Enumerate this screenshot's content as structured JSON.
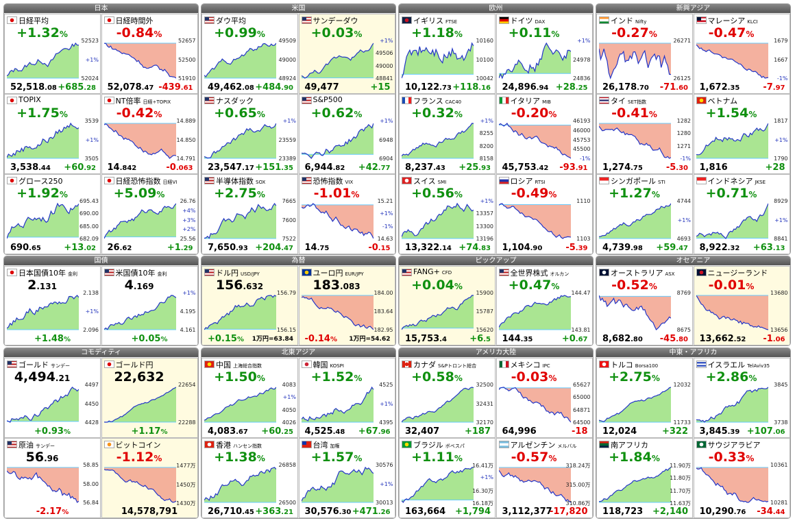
{
  "groups": [
    {
      "title": "日本",
      "tiles": [
        {
          "name": "日経平均",
          "big": "+1.32%",
          "labels": [
            "52523",
            "+1%",
            "52024"
          ],
          "bottom": [
            "52,518.08",
            "+685.28"
          ]
        },
        {
          "name": "日経時間外",
          "big": "-0.84%",
          "labels": [
            "52657",
            "52500",
            "51910"
          ],
          "bottom": [
            "52,078.47",
            "-439.61"
          ]
        },
        {
          "name": "TOPIX",
          "big": "+1.75%",
          "labels": [
            "3539",
            "+1%",
            "3505"
          ],
          "bottom": [
            "3,538.44",
            "+60.92"
          ]
        },
        {
          "name": "NT倍率",
          "sub": "日経÷TOPIX",
          "big": "-0.42%",
          "labels": [
            "14.889",
            "14.850",
            "14.791"
          ],
          "bottom": [
            "14.842",
            "-0.063"
          ]
        },
        {
          "name": "グロース250",
          "big": "+1.92%",
          "labels": [
            "695.43",
            "690.00",
            "685.00",
            "682.09"
          ],
          "bottom": [
            "690.65",
            "+13.02"
          ]
        },
        {
          "name": "日経恐怖指数",
          "sub": "日経VI",
          "big": "+5.09%",
          "labels": [
            "26.76",
            "+4%",
            "+3%",
            "+2%",
            "25.56"
          ],
          "bottom": [
            "26.62",
            "+1.29"
          ]
        }
      ]
    },
    {
      "title": "米国",
      "tiles": [
        {
          "name": "ダウ平均",
          "big": "+0.99%",
          "labels": [
            "49509",
            "49000",
            "48924"
          ],
          "bottom": [
            "49,462.08",
            "+484.90"
          ]
        },
        {
          "name": "サンデーダウ",
          "big": "+0.03%",
          "labels": [
            "+1%",
            "49506",
            "49000",
            "48841"
          ],
          "bottom": [
            "49,477",
            "+15"
          ],
          "highlight": true
        },
        {
          "name": "ナスダック",
          "big": "+0.65%",
          "labels": [
            "+1%",
            "23559",
            "23389"
          ],
          "bottom": [
            "23,547.17",
            "+151.35"
          ]
        },
        {
          "name": "S&P500",
          "big": "+0.62%",
          "labels": [
            "+1%",
            "6948",
            "6904"
          ],
          "bottom": [
            "6,944.82",
            "+42.77"
          ]
        },
        {
          "name": "半導体指数",
          "sub": "SOX",
          "big": "+2.75%",
          "labels": [
            "7665",
            "7600",
            "7522"
          ],
          "bottom": [
            "7,650.93",
            "+204.47"
          ]
        },
        {
          "name": "恐怖指数",
          "sub": "VIX",
          "big": "-1.01%",
          "labels": [
            "15.21",
            "+1%",
            "-1%",
            "14.63"
          ],
          "bottom": [
            "14.75",
            "-0.15"
          ]
        }
      ]
    },
    {
      "title": "欧州",
      "tiles": [
        {
          "name": "イギリス",
          "sub": "FTSE",
          "big": "+1.18%",
          "labels": [
            "10160",
            "10100",
            "10042"
          ],
          "bottom": [
            "10,122.73",
            "+118.16"
          ]
        },
        {
          "name": "ドイツ",
          "sub": "DAX",
          "big": "+0.11%",
          "labels": [
            "+1%",
            "24978",
            "24836"
          ],
          "bottom": [
            "24,896.94",
            "+28.25"
          ]
        },
        {
          "name": "フランス",
          "sub": "CAC40",
          "big": "+0.32%",
          "labels": [
            "+1%",
            "8255",
            "8200",
            "8158"
          ],
          "bottom": [
            "8,237.43",
            "+25.93"
          ]
        },
        {
          "name": "イタリア",
          "sub": "MIB",
          "big": "-0.20%",
          "labels": [
            "46193",
            "46000",
            "45753",
            "45500",
            "-1%"
          ],
          "bottom": [
            "45,753.42",
            "-93.91"
          ]
        },
        {
          "name": "スイス",
          "sub": "SMI",
          "big": "+0.56%",
          "labels": [
            "+1%",
            "13357",
            "13300",
            "13196"
          ],
          "bottom": [
            "13,322.14",
            "+74.83"
          ]
        },
        {
          "name": "ロシア",
          "sub": "RTSI",
          "big": "-0.49%",
          "labels": [
            "1110",
            "1103"
          ],
          "bottom": [
            "1,104.90",
            "-5.39"
          ]
        }
      ]
    },
    {
      "title": "新興アジア",
      "tiles": [
        {
          "name": "インド",
          "sub": "Nifty",
          "big": "-0.27%",
          "labels": [
            "26271",
            "26125"
          ],
          "bottom": [
            "26,178.70",
            "-71.60"
          ]
        },
        {
          "name": "マレーシア",
          "sub": "KLCI",
          "big": "-0.47%",
          "labels": [
            "1679",
            "1667",
            "-1%"
          ],
          "bottom": [
            "1,672.35",
            "-7.97"
          ]
        },
        {
          "name": "タイ",
          "sub": "SET指数",
          "big": "-0.41%",
          "labels": [
            "1282",
            "1280",
            "1271",
            "-1%"
          ],
          "bottom": [
            "1,274.75",
            "-5.30"
          ]
        },
        {
          "name": "ベトナム",
          "big": "+1.54%",
          "labels": [
            "1817",
            "+1%",
            "1790"
          ],
          "bottom": [
            "1,816",
            "+28"
          ]
        },
        {
          "name": "シンガポール",
          "sub": "STI",
          "big": "+1.27%",
          "labels": [
            "4744",
            "+1%",
            "4693"
          ],
          "bottom": [
            "4,739.98",
            "+59.47"
          ]
        },
        {
          "name": "インドネシア",
          "sub": "JKSE",
          "big": "+0.71%",
          "labels": [
            "8929",
            "+1%",
            "8841"
          ],
          "bottom": [
            "8,922.32",
            "+63.13"
          ]
        }
      ]
    },
    {
      "title": "国債",
      "tiles": [
        {
          "name": "日本国債10年",
          "sub": "金利",
          "big": "2.131",
          "labels": [
            "2.138",
            "+1%",
            "2.096"
          ],
          "bottom": [
            "+1.48%"
          ]
        },
        {
          "name": "米国債10年",
          "sub": "金利",
          "big": "4.169",
          "labels": [
            "+1%",
            "4.195",
            "4.161"
          ],
          "bottom": [
            "+0.05%"
          ]
        }
      ]
    },
    {
      "title": "為替",
      "tiles": [
        {
          "name": "ドル円",
          "sub": "USD/JPY",
          "big": "156.632",
          "labels": [
            "156.79",
            "156.15"
          ],
          "bottom": [
            "+0.15%",
            "1万円=63.84"
          ],
          "highlight": true
        },
        {
          "name": "ユーロ円",
          "sub": "EUR/JPY",
          "big": "183.083",
          "labels": [
            "184.00",
            "183.64",
            "182.95"
          ],
          "bottom": [
            "-0.14%",
            "1万円=54.62"
          ],
          "highlight": true
        }
      ]
    },
    {
      "title": "ピックアップ",
      "tiles": [
        {
          "name": "FANG+",
          "sub": "CFD",
          "big": "+0.04%",
          "labels": [
            "15900",
            "15787",
            "15620"
          ],
          "bottom": [
            "15,753.4",
            "+6.5"
          ],
          "highlight": true
        },
        {
          "name": "全世界株式",
          "sub": "オルカン",
          "big": "+0.47%",
          "labels": [
            "144.47",
            "143.81"
          ],
          "bottom": [
            "144.35",
            "+0.67"
          ]
        }
      ]
    },
    {
      "title": "オセアニア",
      "tiles": [
        {
          "name": "オーストラリア",
          "sub": "ASX",
          "big": "-0.52%",
          "labels": [
            "8769",
            "8675"
          ],
          "bottom": [
            "8,682.80",
            "-45.80"
          ]
        },
        {
          "name": "ニュージーランド",
          "big": "-0.01%",
          "labels": [
            "13680",
            "13656"
          ],
          "bottom": [
            "13,662.52",
            "-1.06"
          ],
          "highlight": true
        }
      ]
    },
    {
      "title": "コモディティ",
      "tiles": [
        {
          "name": "ゴールド",
          "sub": "サンデー",
          "big": "4,494.21",
          "labels": [
            "4497",
            "4450",
            "4428"
          ],
          "bottom": [
            "+0.93%"
          ]
        },
        {
          "name": "ゴールド円",
          "big": "22,632",
          "labels": [
            "22654",
            "22288"
          ],
          "bottom": [
            "+1.17%"
          ],
          "highlight": true
        },
        {
          "name": "原油",
          "sub": "サンデー",
          "big": "56.96",
          "labels": [
            "58.85",
            "58.00",
            "56.84"
          ],
          "bottom": [
            "-2.17%"
          ]
        },
        {
          "name": "ビットコイン",
          "big": "-1.12%",
          "labels": [
            "1477万",
            "1450万",
            "1430万"
          ],
          "bottom": [
            "14,578,791"
          ],
          "highlight": true
        }
      ]
    },
    {
      "title": "北東アジア",
      "tiles": [
        {
          "name": "中国",
          "sub": "上海総合指数",
          "big": "+1.50%",
          "labels": [
            "4083",
            "+1%",
            "4050",
            "4026"
          ],
          "bottom": [
            "4,083.67",
            "+60.25"
          ]
        },
        {
          "name": "韓国",
          "sub": "KOSPI",
          "big": "+1.52%",
          "labels": [
            "4525",
            "+1%",
            "4395"
          ],
          "bottom": [
            "4,525.48",
            "+67.96"
          ]
        },
        {
          "name": "香港",
          "sub": "ハンセン指数",
          "big": "+1.38%",
          "labels": [
            "26858",
            "26500"
          ],
          "bottom": [
            "26,710.45",
            "+363.21"
          ]
        },
        {
          "name": "台湾",
          "sub": "加権",
          "big": "+1.57%",
          "labels": [
            "30576",
            "+1%",
            "30013"
          ],
          "bottom": [
            "30,576.30",
            "+471.26"
          ]
        }
      ]
    },
    {
      "title": "アメリカ大陸",
      "tiles": [
        {
          "name": "カナダ",
          "sub": "S&Pトロント総合",
          "big": "+0.58%",
          "labels": [
            "32500",
            "32431",
            "32170"
          ],
          "bottom": [
            "32,407",
            "+187"
          ]
        },
        {
          "name": "メキシコ",
          "sub": "IPC",
          "big": "-0.03%",
          "labels": [
            "65627",
            "65000",
            "64871",
            "64500"
          ],
          "bottom": [
            "64,996",
            "-18"
          ]
        },
        {
          "name": "ブラジル",
          "sub": "ボベスパ",
          "big": "+1.11%",
          "labels": [
            "16.41万",
            "+1%",
            "16.30万",
            "16.18万"
          ],
          "bottom": [
            "163,664",
            "+1,794"
          ]
        },
        {
          "name": "アルゼンチン",
          "sub": "メルバル",
          "big": "-0.57%",
          "labels": [
            "318.24万",
            "315.00万",
            "310.86万"
          ],
          "bottom": [
            "3,112,377",
            "-17,820"
          ]
        }
      ]
    },
    {
      "title": "中東・アフリカ",
      "tiles": [
        {
          "name": "トルコ",
          "sub": "Borsa100",
          "big": "+2.75%",
          "labels": [
            "12032",
            "11733"
          ],
          "bottom": [
            "12,024",
            "+322"
          ]
        },
        {
          "name": "イスラエル",
          "sub": "TelAviv35",
          "big": "+2.86%",
          "labels": [
            "3845",
            "3738"
          ],
          "bottom": [
            "3,845.39",
            "+107.06"
          ]
        },
        {
          "name": "南アフリカ",
          "big": "+1.84%",
          "labels": [
            "11.90万",
            "11.80万",
            "11.70万",
            "11.63万"
          ],
          "bottom": [
            "118,723",
            "+2,140"
          ]
        },
        {
          "name": "サウジアラビア",
          "big": "-0.33%",
          "labels": [
            "10361",
            "10281"
          ],
          "bottom": [
            "10,290.76",
            "-34.44"
          ]
        }
      ]
    }
  ]
}
